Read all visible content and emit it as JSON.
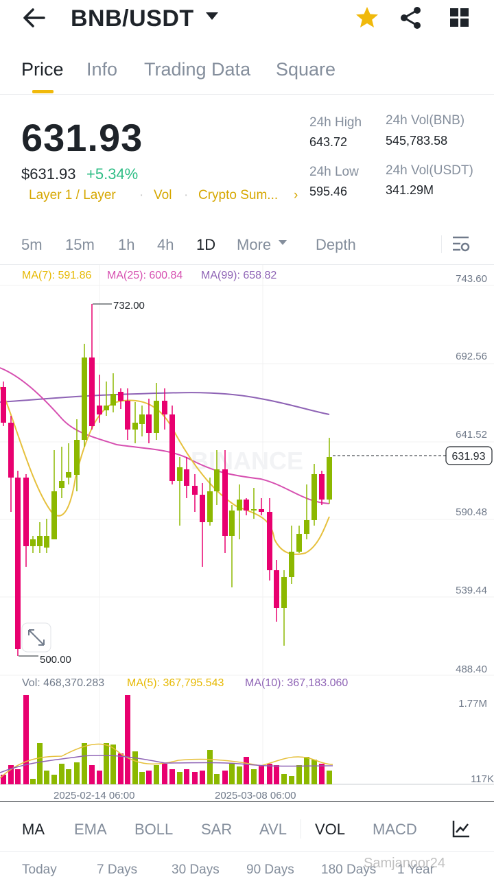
{
  "header": {
    "pair": "BNB/USDT"
  },
  "tabs": [
    {
      "label": "Price",
      "active": true
    },
    {
      "label": "Info"
    },
    {
      "label": "Trading Data"
    },
    {
      "label": "Square"
    }
  ],
  "ticker": {
    "last": "631.93",
    "usd": "$631.93",
    "change": "+5.34%",
    "tags": [
      "Layer 1 / Layer",
      "Vol",
      "Crypto Sum..."
    ],
    "high_label": "24h High",
    "high": "643.72",
    "low_label": "24h Low",
    "low": "595.46",
    "vol_bnb_label": "24h Vol(BNB)",
    "vol_bnb": "545,783.58",
    "vol_usdt_label": "24h Vol(USDT)",
    "vol_usdt": "341.29M"
  },
  "timeframes": [
    "5m",
    "15m",
    "1h",
    "4h",
    "1D",
    "More",
    "Depth"
  ],
  "indicators": {
    "ma7": "MA(7): 591.86",
    "ma25": "MA(25): 600.84",
    "ma99": "MA(99): 658.82",
    "vol": "Vol: 468,370.283",
    "vma5": "MA(5): 367,795.543",
    "vma10": "MA(10): 367,183.060"
  },
  "chart": {
    "y_ticks": [
      "743.60",
      "692.56",
      "641.52",
      "590.48",
      "539.44",
      "488.40"
    ],
    "vol_ticks": [
      "1.77M",
      "117K"
    ],
    "high_marker": "732.00",
    "low_marker": "500.00",
    "last_price_tag": "631.93",
    "x_labels": [
      "2025-02-14 06:00",
      "2025-03-08 06:00"
    ],
    "watermark": "BINANCE",
    "colors": {
      "up": "#8cb800",
      "down": "#e8006f",
      "ma7": "#e6c03c",
      "ma25": "#d64fb0",
      "ma99": "#8e63b5"
    }
  },
  "bottom_tabs": [
    "MA",
    "EMA",
    "BOLL",
    "SAR",
    "AVL",
    "VOL",
    "MACD"
  ],
  "ranges": [
    "Today",
    "7 Days",
    "30 Days",
    "90 Days",
    "180 Days",
    "1 Year"
  ],
  "watermark_user": "Samjanoor24"
}
